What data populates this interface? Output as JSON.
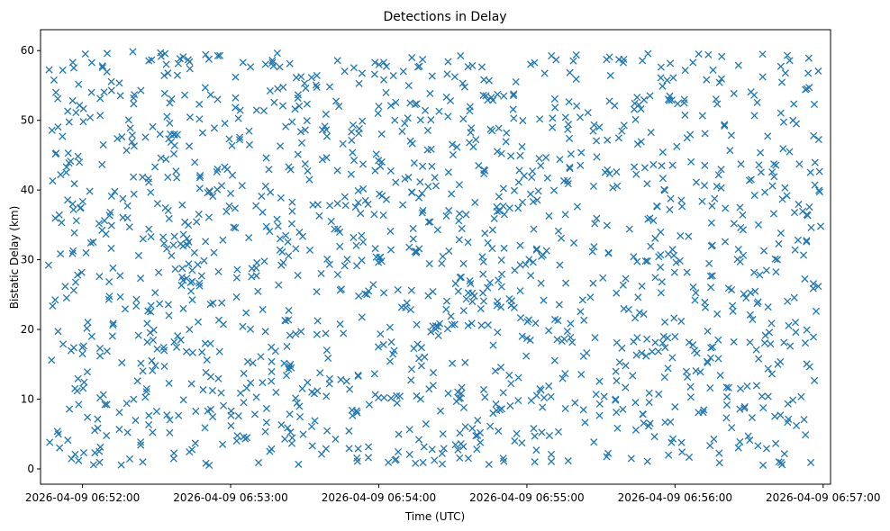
{
  "chart_data": {
    "type": "scatter",
    "title": "Detections in Delay",
    "xlabel": "Time (UTC)",
    "ylabel": "Bistatic Delay (km)",
    "x_ticks": [
      "2026-04-09 06:52:00",
      "2026-04-09 06:53:00",
      "2026-04-09 06:54:00",
      "2026-04-09 06:55:00",
      "2026-04-09 06:56:00",
      "2026-04-09 06:57:00"
    ],
    "y_ticks": [
      "0",
      "10",
      "20",
      "30",
      "40",
      "50",
      "60"
    ],
    "xlim": [
      "2026-04-09 06:51:43",
      "2026-04-09 06:57:03"
    ],
    "ylim": [
      -2.2,
      63.0
    ],
    "grid": false,
    "marker": "x",
    "color": "#1f77b4",
    "points_note": "about 1500 uniformly scattered points",
    "series": [
      {
        "x_range": [
          "2026-04-09 06:51:46",
          "2026-04-09 06:56:59"
        ],
        "y_range": [
          0.5,
          59.9
        ],
        "points": [
          [
            "2026-04-09 06:51:50",
            53.1
          ],
          [
            "2026-04-09 06:51:52",
            57.2
          ],
          [
            "2026-04-09 06:51:54",
            51.3
          ],
          [
            "2026-04-09 06:51:56",
            38.0
          ],
          [
            "2026-04-09 06:51:58",
            27.8
          ],
          [
            "2026-04-09 06:52:00",
            16.5
          ],
          [
            "2026-04-09 06:52:02",
            7.4
          ],
          [
            "2026-04-09 06:52:05",
            2.3
          ],
          [
            "2026-04-09 06:52:10",
            59.6
          ],
          [
            "2026-04-09 06:52:20",
            46.9
          ],
          [
            "2026-04-09 06:52:35",
            22.0
          ],
          [
            "2026-04-09 06:52:50",
            0.8
          ],
          [
            "2026-04-09 06:53:05",
            58.3
          ],
          [
            "2026-04-09 06:53:20",
            31.4
          ],
          [
            "2026-04-09 06:53:40",
            12.2
          ],
          [
            "2026-04-09 06:54:00",
            52.0
          ],
          [
            "2026-04-09 06:54:20",
            40.5
          ],
          [
            "2026-04-09 06:54:40",
            4.8
          ],
          [
            "2026-04-09 06:55:00",
            18.7
          ],
          [
            "2026-04-09 06:55:20",
            55.9
          ],
          [
            "2026-04-09 06:55:40",
            27.3
          ],
          [
            "2026-04-09 06:56:00",
            8.9
          ],
          [
            "2026-04-09 06:56:20",
            49.2
          ],
          [
            "2026-04-09 06:56:40",
            36.6
          ],
          [
            "2026-04-09 06:56:55",
            0.9
          ],
          [
            "2026-04-09 06:56:59",
            34.8
          ]
        ]
      }
    ]
  }
}
